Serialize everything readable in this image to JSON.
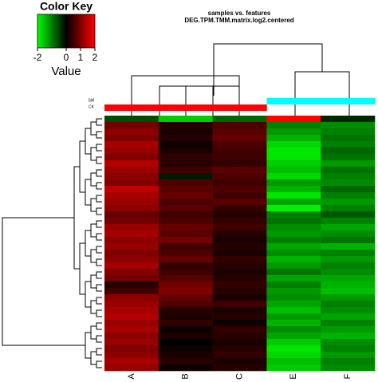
{
  "chart_data": {
    "type": "heatmap",
    "title": "samples vs. features",
    "subtitle": "DEG.TPM.TMM.matrix.log2.centered",
    "color_key": {
      "title": "Color Key",
      "label": "Value",
      "lim": [
        -2,
        2
      ],
      "ticks": [
        -2,
        0,
        1,
        2
      ]
    },
    "colormap": [
      "#00ff00",
      "#000000",
      "#ff0000"
    ],
    "categories": [
      "A",
      "B",
      "C",
      "E",
      "F"
    ],
    "groups": [
      {
        "name": "SM",
        "color": "#00ffff",
        "members": [
          "E",
          "F"
        ]
      },
      {
        "name": "CK",
        "color": "#ff0000",
        "members": [
          "A",
          "B",
          "C"
        ]
      }
    ],
    "rows": [
      [
        -0.6,
        -1.6,
        -0.8,
        2.0,
        -0.3
      ],
      [
        0.9,
        0.3,
        0.6,
        -1.0,
        -1.1
      ],
      [
        1.1,
        0.2,
        0.7,
        -1.2,
        -1.0
      ],
      [
        1.0,
        0.3,
        0.8,
        -1.4,
        -0.9
      ],
      [
        1.3,
        0.1,
        0.6,
        -1.7,
        -1.0
      ],
      [
        1.2,
        0.2,
        0.5,
        -1.8,
        -0.8
      ],
      [
        1.0,
        0.4,
        0.5,
        -1.8,
        -0.9
      ],
      [
        1.4,
        0.3,
        0.4,
        -1.6,
        -1.2
      ],
      [
        1.2,
        0.5,
        0.7,
        -1.5,
        -0.9
      ],
      [
        1.1,
        -0.2,
        0.6,
        -1.7,
        -1.0
      ],
      [
        1.0,
        0.6,
        0.5,
        -1.2,
        -1.1
      ],
      [
        1.5,
        0.7,
        0.6,
        -1.4,
        -0.8
      ],
      [
        1.3,
        0.8,
        0.5,
        -1.8,
        -1.0
      ],
      [
        1.2,
        0.6,
        0.7,
        -1.3,
        -1.2
      ],
      [
        1.1,
        0.7,
        0.4,
        -1.9,
        -1.0
      ],
      [
        0.8,
        0.5,
        0.3,
        -1.0,
        -0.7
      ],
      [
        0.9,
        0.6,
        0.4,
        -0.9,
        -1.0
      ],
      [
        1.2,
        0.8,
        0.5,
        -1.1,
        -1.3
      ],
      [
        1.3,
        0.7,
        0.3,
        -1.2,
        -1.1
      ],
      [
        1.1,
        0.9,
        0.2,
        -1.0,
        -0.9
      ],
      [
        1.2,
        0.5,
        0.3,
        -1.3,
        -1.4
      ],
      [
        1.0,
        0.6,
        0.2,
        -1.1,
        -1.0
      ],
      [
        1.1,
        0.8,
        0.4,
        -1.4,
        -1.2
      ],
      [
        1.3,
        0.4,
        0.3,
        -1.2,
        -1.0
      ],
      [
        1.0,
        0.5,
        0.2,
        -0.9,
        -1.1
      ],
      [
        0.9,
        0.7,
        0.3,
        -1.3,
        -1.3
      ],
      [
        0.3,
        0.9,
        0.4,
        -1.0,
        -1.4
      ],
      [
        0.5,
        1.0,
        0.3,
        -1.2,
        -1.5
      ],
      [
        1.1,
        0.8,
        0.2,
        -1.1,
        -1.2
      ],
      [
        1.2,
        0.6,
        0.5,
        -1.3,
        -1.0
      ],
      [
        1.3,
        0.3,
        0.2,
        -1.5,
        -1.1
      ],
      [
        1.4,
        0.2,
        0.3,
        -1.2,
        -1.3
      ],
      [
        1.2,
        0.4,
        0.1,
        -1.4,
        -1.0
      ],
      [
        1.3,
        0.1,
        0.4,
        -1.1,
        -1.2
      ],
      [
        1.1,
        0.2,
        0.3,
        -1.3,
        -1.4
      ],
      [
        1.2,
        0.0,
        0.2,
        -1.6,
        -1.1
      ],
      [
        1.0,
        0.1,
        0.3,
        -1.8,
        -1.0
      ],
      [
        1.1,
        0.2,
        0.4,
        -1.7,
        -1.2
      ],
      [
        1.3,
        0.3,
        0.2,
        -1.5,
        -1.0
      ],
      [
        1.2,
        0.1,
        0.3,
        -1.6,
        -1.1
      ]
    ]
  }
}
